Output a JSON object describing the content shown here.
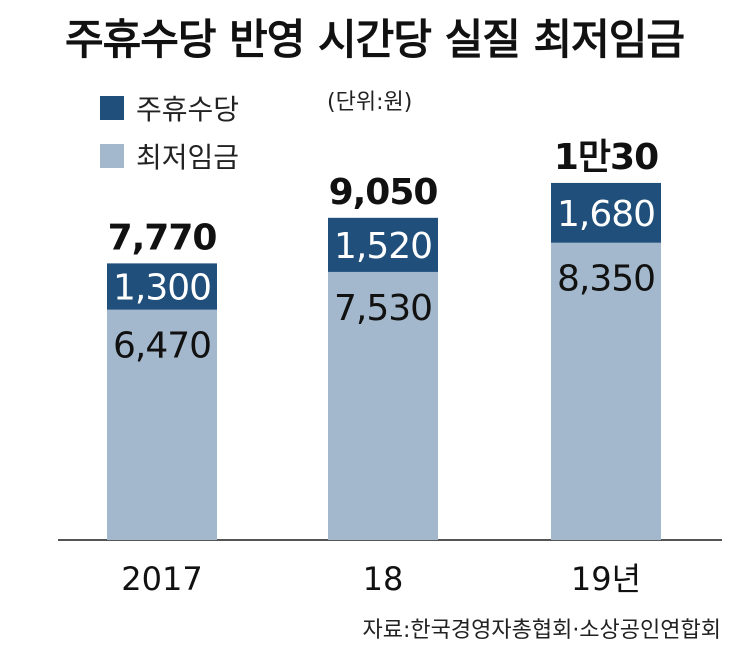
{
  "title": "주휴수당 반영 시간당 실질 최저임금",
  "unit_note": "(단위:원)",
  "source": "자료:한국경영자총협회·소상공인연합회",
  "colors": {
    "weekly_allowance": "#1f4f7a",
    "minimum_wage": "#a3b8cc",
    "axis": "#555555"
  },
  "chart_data": {
    "type": "bar",
    "stacked": true,
    "categories": [
      "2017",
      "18",
      "19년"
    ],
    "series": [
      {
        "name": "최저임금",
        "values": [
          6470,
          7530,
          8350
        ],
        "value_labels": [
          "6,470",
          "7,530",
          "8,350"
        ]
      },
      {
        "name": "주휴수당",
        "values": [
          1300,
          1520,
          1680
        ],
        "value_labels": [
          "1,300",
          "1,520",
          "1,680"
        ]
      }
    ],
    "totals": [
      7770,
      9050,
      10030
    ],
    "total_labels": [
      "7,770",
      "9,050",
      "1만30"
    ],
    "legend": [
      "주휴수당",
      "최저임금"
    ],
    "legend_position": "top-left",
    "ylim": [
      0,
      10030
    ],
    "grid": false
  }
}
